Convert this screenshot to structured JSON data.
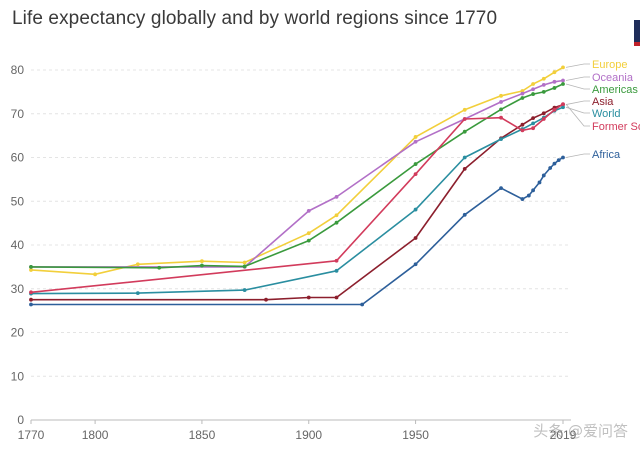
{
  "chart_data": {
    "type": "line",
    "title": "Life expectancy globally and by world regions since 1770",
    "xlabel": "",
    "ylabel": "",
    "xlim": [
      1770,
      2019
    ],
    "ylim": [
      0,
      80
    ],
    "x_ticks": [
      "1770",
      "1800",
      "1850",
      "1900",
      "1950",
      "2019"
    ],
    "y_ticks": [
      "0",
      "10",
      "20",
      "30",
      "40",
      "50",
      "60",
      "70",
      "80"
    ],
    "grid": true,
    "legend_position": "right, at line ends",
    "series": [
      {
        "name": "Europe",
        "color": "#f2cf3b",
        "x": [
          1770,
          1800,
          1820,
          1850,
          1870,
          1900,
          1913,
          1950,
          1973,
          1990,
          2000,
          2005,
          2010,
          2015,
          2019
        ],
        "y": [
          34.3,
          33.3,
          35.6,
          36.3,
          36.0,
          42.7,
          46.8,
          64.7,
          70.9,
          74.1,
          75.2,
          76.8,
          78.0,
          79.5,
          80.6
        ]
      },
      {
        "name": "Oceania",
        "color": "#b270c7",
        "x": [
          1770,
          1870,
          1900,
          1913,
          1950,
          1973,
          1990,
          2000,
          2005,
          2010,
          2015,
          2019
        ],
        "y": [
          35.0,
          35.0,
          47.8,
          51.0,
          63.6,
          68.8,
          72.7,
          74.6,
          75.6,
          76.6,
          77.3,
          77.6
        ]
      },
      {
        "name": "Americas",
        "color": "#3a9a3d",
        "x": [
          1770,
          1830,
          1850,
          1870,
          1900,
          1913,
          1950,
          1973,
          1990,
          2000,
          2005,
          2010,
          2015,
          2019
        ],
        "y": [
          35.0,
          34.8,
          35.3,
          35.1,
          41.0,
          45.1,
          58.5,
          65.9,
          71.0,
          73.6,
          74.5,
          75.0,
          75.9,
          76.8
        ]
      },
      {
        "name": "Asia",
        "color": "#8c1f2d",
        "x": [
          1770,
          1880,
          1900,
          1913,
          1950,
          1973,
          1990,
          2000,
          2005,
          2010,
          2015,
          2019
        ],
        "y": [
          27.5,
          27.5,
          28.0,
          28.0,
          41.6,
          57.4,
          64.4,
          67.5,
          69.0,
          70.1,
          71.4,
          72.1
        ]
      },
      {
        "name": "World",
        "color": "#2a8ea0",
        "x": [
          1770,
          1820,
          1870,
          1913,
          1950,
          1973,
          1990,
          2000,
          2005,
          2010,
          2015,
          2019
        ],
        "y": [
          28.9,
          29.0,
          29.7,
          34.1,
          48.1,
          60.0,
          64.2,
          66.5,
          67.8,
          69.1,
          70.7,
          71.5
        ]
      },
      {
        "name": "Former Soviet Union",
        "color": "#d23b5c",
        "x": [
          1770,
          1913,
          1950,
          1973,
          1990,
          2000,
          2005,
          2010,
          2015,
          2019
        ],
        "y": [
          29.2,
          36.4,
          56.2,
          68.8,
          69.1,
          66.2,
          66.7,
          68.8,
          70.9,
          72.2
        ]
      },
      {
        "name": "Africa",
        "color": "#2d5f9a",
        "x": [
          1770,
          1925,
          1950,
          1973,
          1990,
          2000,
          2003,
          2005,
          2008,
          2010,
          2013,
          2015,
          2017,
          2019
        ],
        "y": [
          26.4,
          26.4,
          35.6,
          46.9,
          53.0,
          50.5,
          51.3,
          52.5,
          54.3,
          55.9,
          57.6,
          58.6,
          59.4,
          60.0
        ]
      }
    ],
    "legend_labels": [
      "Europe",
      "Oceania",
      "Americas",
      "Asia",
      "World",
      "Former So"
    ]
  },
  "watermark": "头条 @爱问答",
  "legend_label_africa": "Africa"
}
